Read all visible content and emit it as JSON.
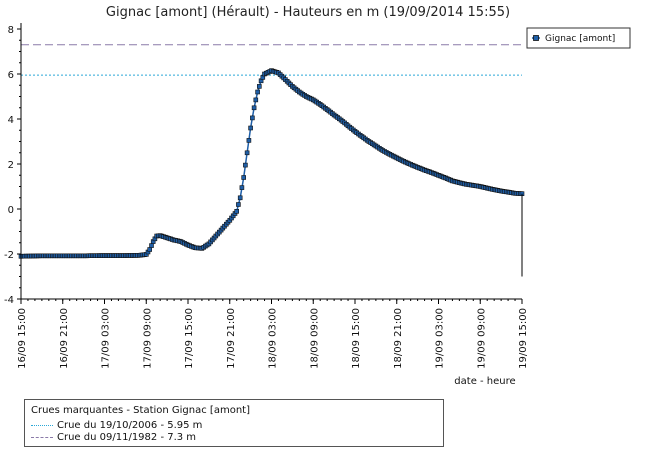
{
  "chart_data": {
    "type": "line",
    "title": "Gignac [amont] (Hérault) - Hauteurs en m (19/09/2014 15:55)",
    "xlabel": "date - heure",
    "ylabel": "",
    "ylim": [
      -4,
      8
    ],
    "yticks": [
      -4,
      -2,
      0,
      2,
      4,
      6,
      8
    ],
    "xlim_hours": [
      0,
      72
    ],
    "xticks": [
      {
        "h": 0,
        "label": "16/09 15:00"
      },
      {
        "h": 6,
        "label": "16/09 21:00"
      },
      {
        "h": 12,
        "label": "17/09 03:00"
      },
      {
        "h": 18,
        "label": "17/09 09:00"
      },
      {
        "h": 24,
        "label": "17/09 15:00"
      },
      {
        "h": 30,
        "label": "17/09 21:00"
      },
      {
        "h": 36,
        "label": "18/09 03:00"
      },
      {
        "h": 42,
        "label": "18/09 09:00"
      },
      {
        "h": 48,
        "label": "18/09 15:00"
      },
      {
        "h": 54,
        "label": "18/09 21:00"
      },
      {
        "h": 60,
        "label": "19/09 03:00"
      },
      {
        "h": 66,
        "label": "19/09 09:00"
      },
      {
        "h": 72,
        "label": "19/09 15:00"
      }
    ],
    "grid": false,
    "legend": "top-right",
    "series": [
      {
        "name": "Gignac [amont]",
        "color": "#1f5fa8",
        "points": [
          [
            0,
            -2.1
          ],
          [
            3,
            -2.08
          ],
          [
            6,
            -2.08
          ],
          [
            9,
            -2.08
          ],
          [
            12,
            -2.07
          ],
          [
            15,
            -2.07
          ],
          [
            17,
            -2.06
          ],
          [
            18,
            -2.02
          ],
          [
            18.5,
            -1.8
          ],
          [
            19,
            -1.45
          ],
          [
            19.5,
            -1.2
          ],
          [
            20,
            -1.18
          ],
          [
            21,
            -1.28
          ],
          [
            22,
            -1.38
          ],
          [
            23,
            -1.45
          ],
          [
            24,
            -1.6
          ],
          [
            25,
            -1.72
          ],
          [
            26,
            -1.75
          ],
          [
            27,
            -1.55
          ],
          [
            28,
            -1.2
          ],
          [
            29,
            -0.85
          ],
          [
            30,
            -0.5
          ],
          [
            31,
            -0.1
          ],
          [
            31.5,
            0.5
          ],
          [
            32,
            1.4
          ],
          [
            32.5,
            2.5
          ],
          [
            33,
            3.6
          ],
          [
            33.5,
            4.5
          ],
          [
            34,
            5.2
          ],
          [
            34.5,
            5.7
          ],
          [
            35,
            6.0
          ],
          [
            36,
            6.15
          ],
          [
            37,
            6.05
          ],
          [
            38,
            5.75
          ],
          [
            39,
            5.45
          ],
          [
            40,
            5.2
          ],
          [
            41,
            5.0
          ],
          [
            42,
            4.85
          ],
          [
            43,
            4.65
          ],
          [
            44,
            4.42
          ],
          [
            45,
            4.18
          ],
          [
            46,
            3.95
          ],
          [
            47,
            3.7
          ],
          [
            48,
            3.45
          ],
          [
            49,
            3.22
          ],
          [
            50,
            3.0
          ],
          [
            51,
            2.8
          ],
          [
            52,
            2.6
          ],
          [
            53,
            2.43
          ],
          [
            54,
            2.27
          ],
          [
            55,
            2.12
          ],
          [
            56,
            1.98
          ],
          [
            57,
            1.85
          ],
          [
            58,
            1.73
          ],
          [
            59,
            1.62
          ],
          [
            60,
            1.5
          ],
          [
            61,
            1.38
          ],
          [
            62,
            1.25
          ],
          [
            63,
            1.17
          ],
          [
            64,
            1.1
          ],
          [
            65,
            1.05
          ],
          [
            66,
            1.0
          ],
          [
            67,
            0.93
          ],
          [
            68,
            0.86
          ],
          [
            69,
            0.8
          ],
          [
            70,
            0.75
          ],
          [
            71,
            0.7
          ],
          [
            72,
            0.68
          ]
        ]
      }
    ],
    "reference_lines": [
      {
        "value": 5.95,
        "color": "#2aa8d8",
        "style": "dotted",
        "label": "Crue du 19/10/2006 - 5.95 m"
      },
      {
        "value": 7.3,
        "color": "#8a7aa8",
        "style": "dashed",
        "label": "Crue du 09/11/1982 - 7.3 m"
      }
    ]
  },
  "crues_box": {
    "title": "Crues marquantes - Station Gignac [amont]"
  }
}
